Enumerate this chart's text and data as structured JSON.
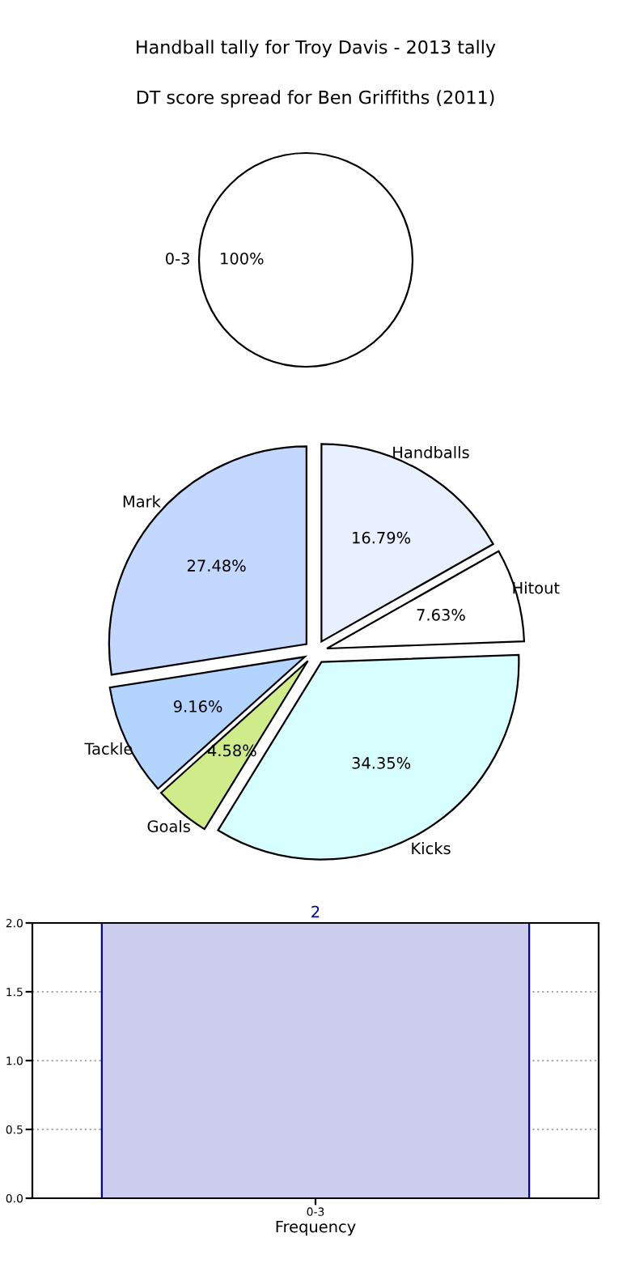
{
  "chart_data": [
    {
      "type": "pie",
      "title": "Handball tally for Troy Davis - 2013 tally",
      "categories": [
        "0-3"
      ],
      "values": [
        100
      ],
      "colors": [
        "#ffffff"
      ],
      "value_labels": [
        "100%"
      ]
    },
    {
      "type": "pie",
      "title": "DT score spread for Ben Griffiths (2011)",
      "categories": [
        "Handballs",
        "Hitout",
        "Kicks",
        "Goals",
        "Tackle",
        "Mark"
      ],
      "values": [
        16.79,
        7.63,
        34.35,
        4.58,
        9.16,
        27.48
      ],
      "colors": [
        "#e8f0ff",
        "#ffffff",
        "#d8ffff",
        "#d0eb8a",
        "#b3d4ff",
        "#c4d8ff"
      ],
      "value_labels": [
        "16.79%",
        "7.63%",
        "34.35%",
        "4.58%",
        "9.16%",
        "27.48%"
      ]
    },
    {
      "type": "bar",
      "xlabel": "Frequency",
      "categories": [
        "0-3"
      ],
      "values": [
        2
      ],
      "color": "#ccccee",
      "ylim": [
        0,
        2
      ],
      "yticks": [
        {
          "value": 0,
          "label": "0.0"
        },
        {
          "value": 0.5,
          "label": "0.5"
        },
        {
          "value": 1,
          "label": "1.0"
        },
        {
          "value": 1.5,
          "label": "1.5"
        },
        {
          "value": 2,
          "label": "2.0"
        }
      ],
      "grid": true,
      "data_labels": true
    }
  ]
}
